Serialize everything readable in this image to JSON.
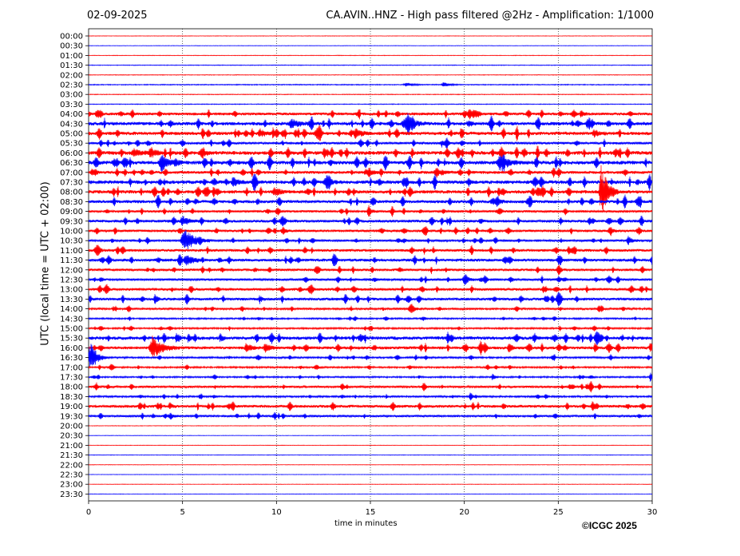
{
  "header": {
    "date": "02-09-2025",
    "title": "CA.AVIN..HNZ - High pass filtered @2Hz - Amplification: 1/1000"
  },
  "footer": {
    "copyright": "©ICGC 2025"
  },
  "colors": {
    "trace_a": "#ff0000",
    "trace_b": "#0000ff",
    "grid": "#000000"
  },
  "chart_data": {
    "type": "helicorder",
    "xlabel": "time in minutes",
    "ylabel": "UTC (local time = UTC + 02:00)",
    "xlim": [
      0,
      30
    ],
    "xticks": [
      0,
      5,
      10,
      15,
      20,
      25,
      30
    ],
    "vertical_grid": [
      5,
      10,
      15,
      20,
      25
    ],
    "grid_style": "dotted",
    "row_labels": [
      "00:00",
      "00:30",
      "01:00",
      "01:30",
      "02:00",
      "02:30",
      "03:00",
      "03:30",
      "04:00",
      "04:30",
      "05:00",
      "05:30",
      "06:00",
      "06:30",
      "07:00",
      "07:30",
      "08:00",
      "08:30",
      "09:00",
      "09:30",
      "10:00",
      "10:30",
      "11:00",
      "11:30",
      "12:00",
      "12:30",
      "13:00",
      "13:30",
      "14:00",
      "14:30",
      "15:00",
      "15:30",
      "16:00",
      "16:30",
      "17:00",
      "17:30",
      "18:00",
      "18:30",
      "19:00",
      "19:30",
      "20:00",
      "20:30",
      "21:00",
      "21:30",
      "22:00",
      "22:30",
      "23:00",
      "23:30"
    ],
    "row_colors": "alternating red (00:00) / blue (00:30)",
    "noise_level": [
      0.3,
      0.3,
      0.35,
      0.45,
      0.4,
      0.6,
      0.45,
      0.5,
      1.8,
      2.2,
      2.2,
      1.6,
      2.4,
      2.4,
      1.9,
      2.3,
      2.2,
      2.0,
      1.5,
      1.8,
      1.6,
      1.4,
      1.7,
      1.9,
      1.6,
      1.5,
      1.7,
      1.8,
      1.3,
      1.0,
      1.1,
      2.2,
      1.9,
      1.2,
      1.1,
      1.0,
      1.4,
      1.2,
      1.8,
      1.4,
      0.35,
      0.3,
      0.3,
      0.35,
      0.3,
      0.3,
      0.3,
      0.3
    ],
    "events": [
      {
        "row": 5,
        "minute": 16.9,
        "amp": 2.5,
        "dur": 0.6
      },
      {
        "row": 5,
        "minute": 18.9,
        "amp": 3.0,
        "dur": 0.5
      },
      {
        "row": 8,
        "minute": 20.0,
        "amp": 5.0,
        "dur": 0.4
      },
      {
        "row": 8,
        "minute": 26.2,
        "amp": 4.0,
        "dur": 0.3
      },
      {
        "row": 9,
        "minute": 10.8,
        "amp": 6.0,
        "dur": 0.6
      },
      {
        "row": 9,
        "minute": 17.0,
        "amp": 8.0,
        "dur": 0.6
      },
      {
        "row": 9,
        "minute": 20.2,
        "amp": 4.0,
        "dur": 0.3
      },
      {
        "row": 10,
        "minute": 9.1,
        "amp": 5.0,
        "dur": 0.4
      },
      {
        "row": 10,
        "minute": 14.2,
        "amp": 6.0,
        "dur": 0.5
      },
      {
        "row": 10,
        "minute": 26.9,
        "amp": 5.0,
        "dur": 0.4
      },
      {
        "row": 11,
        "minute": 18.8,
        "amp": 5.0,
        "dur": 0.3
      },
      {
        "row": 12,
        "minute": 2.4,
        "amp": 5.0,
        "dur": 0.5
      },
      {
        "row": 12,
        "minute": 3.3,
        "amp": 7.0,
        "dur": 0.4
      },
      {
        "row": 12,
        "minute": 6.1,
        "amp": 4.0,
        "dur": 0.4
      },
      {
        "row": 13,
        "minute": 3.9,
        "amp": 8.0,
        "dur": 0.6
      },
      {
        "row": 13,
        "minute": 4.6,
        "amp": 4.0,
        "dur": 0.3
      },
      {
        "row": 13,
        "minute": 22.0,
        "amp": 9.0,
        "dur": 0.6
      },
      {
        "row": 14,
        "minute": 14.8,
        "amp": 4.0,
        "dur": 0.6
      },
      {
        "row": 14,
        "minute": 18.8,
        "amp": 3.0,
        "dur": 0.4
      },
      {
        "row": 15,
        "minute": 7.7,
        "amp": 6.0,
        "dur": 0.4
      },
      {
        "row": 15,
        "minute": 12.6,
        "amp": 5.0,
        "dur": 0.4
      },
      {
        "row": 16,
        "minute": 9.9,
        "amp": 5.0,
        "dur": 0.5
      },
      {
        "row": 16,
        "minute": 27.3,
        "amp": 38.0,
        "dur": 0.5
      },
      {
        "row": 17,
        "minute": 21.8,
        "amp": 4.0,
        "dur": 0.3
      },
      {
        "row": 18,
        "minute": 14.9,
        "amp": 4.0,
        "dur": 0.3
      },
      {
        "row": 19,
        "minute": 5.0,
        "amp": 7.0,
        "dur": 0.5
      },
      {
        "row": 20,
        "minute": 10.3,
        "amp": 4.0,
        "dur": 0.3
      },
      {
        "row": 20,
        "minute": 27.7,
        "amp": 4.0,
        "dur": 0.3
      },
      {
        "row": 21,
        "minute": 5.1,
        "amp": 16.0,
        "dur": 0.8
      },
      {
        "row": 21,
        "minute": 28.7,
        "amp": 6.0,
        "dur": 0.3
      },
      {
        "row": 23,
        "minute": 5.2,
        "amp": 7.0,
        "dur": 0.6
      },
      {
        "row": 25,
        "minute": 20.0,
        "amp": 5.0,
        "dur": 0.3
      },
      {
        "row": 27,
        "minute": 9.1,
        "amp": 6.0,
        "dur": 0.2
      },
      {
        "row": 28,
        "minute": 17.1,
        "amp": 5.0,
        "dur": 0.4
      },
      {
        "row": 31,
        "minute": 5.3,
        "amp": 6.0,
        "dur": 0.2
      },
      {
        "row": 31,
        "minute": 7.0,
        "amp": 6.0,
        "dur": 0.2
      },
      {
        "row": 32,
        "minute": 3.4,
        "amp": 14.0,
        "dur": 0.8
      },
      {
        "row": 32,
        "minute": 8.4,
        "amp": 6.0,
        "dur": 0.4
      },
      {
        "row": 32,
        "minute": 9.4,
        "amp": 6.0,
        "dur": 0.4
      },
      {
        "row": 32,
        "minute": 29.9,
        "amp": 7.0,
        "dur": 0.3
      },
      {
        "row": 33,
        "minute": 0.1,
        "amp": 20.0,
        "dur": 0.5
      },
      {
        "row": 35,
        "minute": 21.5,
        "amp": 5.0,
        "dur": 0.2
      },
      {
        "row": 35,
        "minute": 29.9,
        "amp": 7.0,
        "dur": 0.2
      },
      {
        "row": 36,
        "minute": 26.5,
        "amp": 5.0,
        "dur": 0.2
      },
      {
        "row": 38,
        "minute": 4.3,
        "amp": 5.0,
        "dur": 0.2
      },
      {
        "row": 39,
        "minute": 4.3,
        "amp": 3.0,
        "dur": 0.3
      }
    ]
  }
}
